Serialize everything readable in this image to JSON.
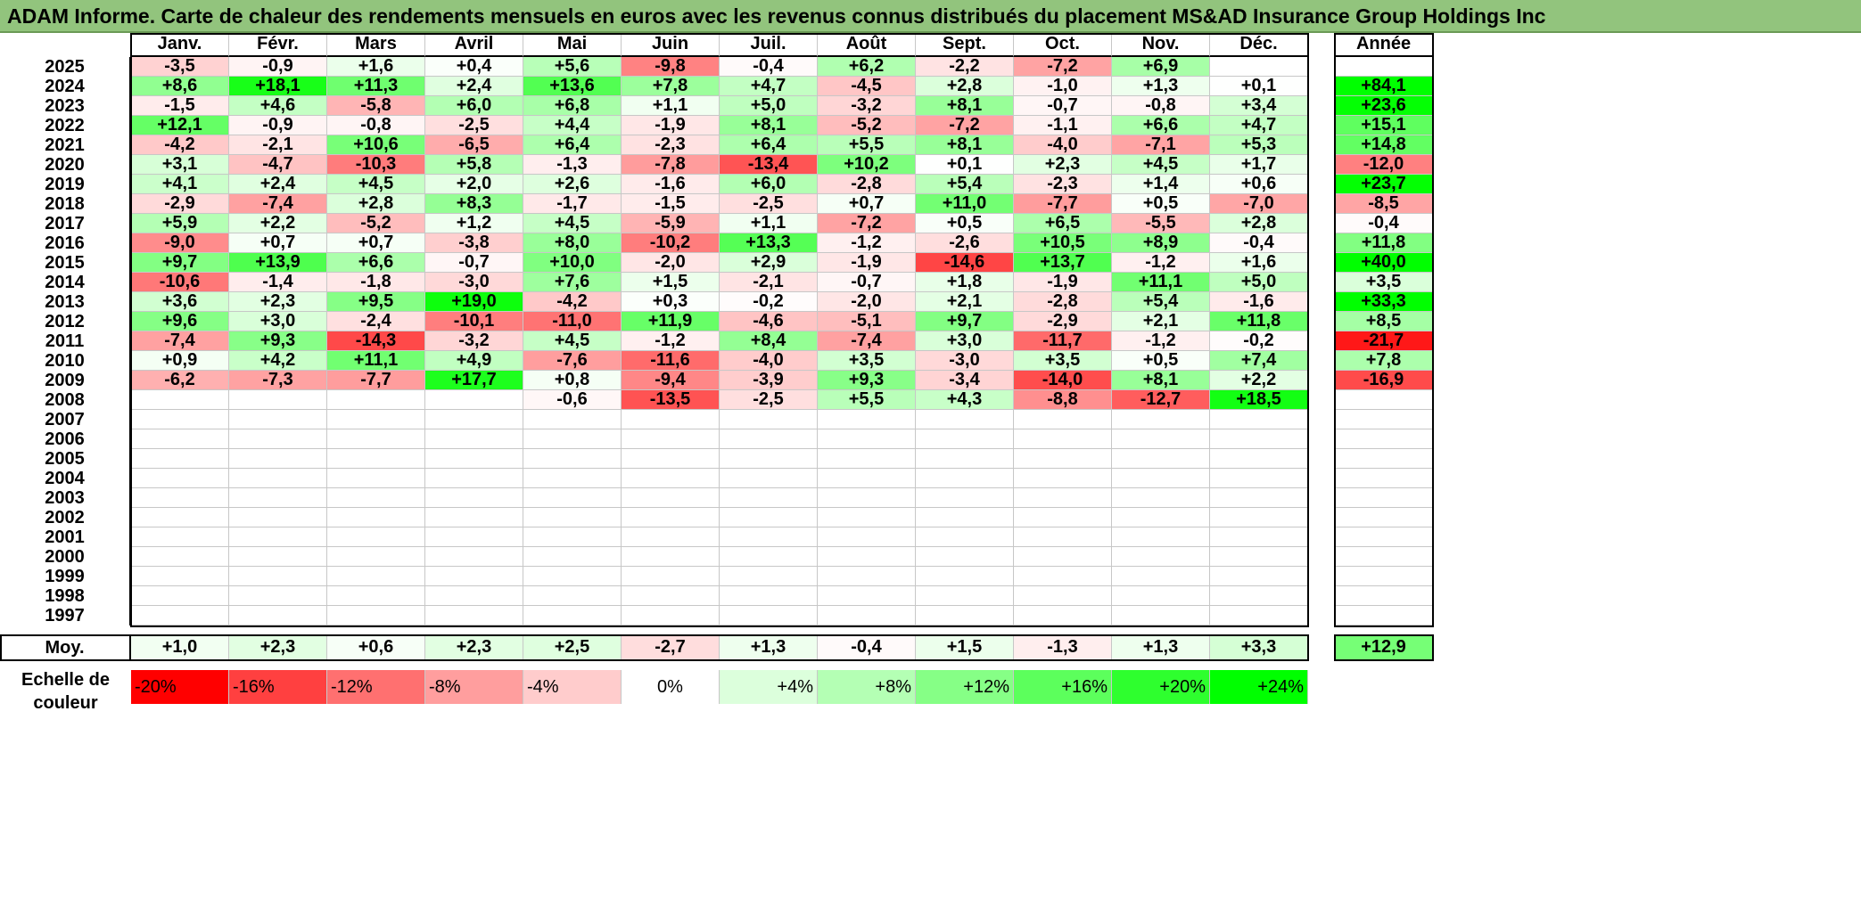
{
  "title": "ADAM Informe. Carte de chaleur des rendements mensuels en euros avec les revenus connus distribués du placement MS&AD Insurance Group Holdings Inc",
  "chart_data": {
    "type": "heatmap",
    "columns": [
      "Janv.",
      "Févr.",
      "Mars",
      "Avril",
      "Mai",
      "Juin",
      "Juil.",
      "Août",
      "Sept.",
      "Oct.",
      "Nov.",
      "Déc."
    ],
    "year_header": "Année",
    "rows": [
      {
        "year": "2025",
        "months": [
          "-3,5",
          "-0,9",
          "+1,6",
          "+0,4",
          "+5,6",
          "-9,8",
          "-0,4",
          "+6,2",
          "-2,2",
          "-7,2",
          "+6,9",
          ""
        ],
        "annual": ""
      },
      {
        "year": "2024",
        "months": [
          "+8,6",
          "+18,1",
          "+11,3",
          "+2,4",
          "+13,6",
          "+7,8",
          "+4,7",
          "-4,5",
          "+2,8",
          "-1,0",
          "+1,3",
          "+0,1"
        ],
        "annual": "+84,1"
      },
      {
        "year": "2023",
        "months": [
          "-1,5",
          "+4,6",
          "-5,8",
          "+6,0",
          "+6,8",
          "+1,1",
          "+5,0",
          "-3,2",
          "+8,1",
          "-0,7",
          "-0,8",
          "+3,4"
        ],
        "annual": "+23,6"
      },
      {
        "year": "2022",
        "months": [
          "+12,1",
          "-0,9",
          "-0,8",
          "-2,5",
          "+4,4",
          "-1,9",
          "+8,1",
          "-5,2",
          "-7,2",
          "-1,1",
          "+6,6",
          "+4,7"
        ],
        "annual": "+15,1"
      },
      {
        "year": "2021",
        "months": [
          "-4,2",
          "-2,1",
          "+10,6",
          "-6,5",
          "+6,4",
          "-2,3",
          "+6,4",
          "+5,5",
          "+8,1",
          "-4,0",
          "-7,1",
          "+5,3"
        ],
        "annual": "+14,8"
      },
      {
        "year": "2020",
        "months": [
          "+3,1",
          "-4,7",
          "-10,3",
          "+5,8",
          "-1,3",
          "-7,8",
          "-13,4",
          "+10,2",
          "+0,1",
          "+2,3",
          "+4,5",
          "+1,7"
        ],
        "annual": "-12,0"
      },
      {
        "year": "2019",
        "months": [
          "+4,1",
          "+2,4",
          "+4,5",
          "+2,0",
          "+2,6",
          "-1,6",
          "+6,0",
          "-2,8",
          "+5,4",
          "-2,3",
          "+1,4",
          "+0,6"
        ],
        "annual": "+23,7"
      },
      {
        "year": "2018",
        "months": [
          "-2,9",
          "-7,4",
          "+2,8",
          "+8,3",
          "-1,7",
          "-1,5",
          "-2,5",
          "+0,7",
          "+11,0",
          "-7,7",
          "+0,5",
          "-7,0"
        ],
        "annual": "-8,5"
      },
      {
        "year": "2017",
        "months": [
          "+5,9",
          "+2,2",
          "-5,2",
          "+1,2",
          "+4,5",
          "-5,9",
          "+1,1",
          "-7,2",
          "+0,5",
          "+6,5",
          "-5,5",
          "+2,8"
        ],
        "annual": "-0,4"
      },
      {
        "year": "2016",
        "months": [
          "-9,0",
          "+0,7",
          "+0,7",
          "-3,8",
          "+8,0",
          "-10,2",
          "+13,3",
          "-1,2",
          "-2,6",
          "+10,5",
          "+8,9",
          "-0,4"
        ],
        "annual": "+11,8"
      },
      {
        "year": "2015",
        "months": [
          "+9,7",
          "+13,9",
          "+6,6",
          "-0,7",
          "+10,0",
          "-2,0",
          "+2,9",
          "-1,9",
          "-14,6",
          "+13,7",
          "-1,2",
          "+1,6"
        ],
        "annual": "+40,0"
      },
      {
        "year": "2014",
        "months": [
          "-10,6",
          "-1,4",
          "-1,8",
          "-3,0",
          "+7,6",
          "+1,5",
          "-2,1",
          "-0,7",
          "+1,8",
          "-1,9",
          "+11,1",
          "+5,0"
        ],
        "annual": "+3,5"
      },
      {
        "year": "2013",
        "months": [
          "+3,6",
          "+2,3",
          "+9,5",
          "+19,0",
          "-4,2",
          "+0,3",
          "-0,2",
          "-2,0",
          "+2,1",
          "-2,8",
          "+5,4",
          "-1,6"
        ],
        "annual": "+33,3"
      },
      {
        "year": "2012",
        "months": [
          "+9,6",
          "+3,0",
          "-2,4",
          "-10,1",
          "-11,0",
          "+11,9",
          "-4,6",
          "-5,1",
          "+9,7",
          "-2,9",
          "+2,1",
          "+11,8"
        ],
        "annual": "+8,5"
      },
      {
        "year": "2011",
        "months": [
          "-7,4",
          "+9,3",
          "-14,3",
          "-3,2",
          "+4,5",
          "-1,2",
          "+8,4",
          "-7,4",
          "+3,0",
          "-11,7",
          "-1,2",
          "-0,2"
        ],
        "annual": "-21,7"
      },
      {
        "year": "2010",
        "months": [
          "+0,9",
          "+4,2",
          "+11,1",
          "+4,9",
          "-7,6",
          "-11,6",
          "-4,0",
          "+3,5",
          "-3,0",
          "+3,5",
          "+0,5",
          "+7,4"
        ],
        "annual": "+7,8"
      },
      {
        "year": "2009",
        "months": [
          "-6,2",
          "-7,3",
          "-7,7",
          "+17,7",
          "+0,8",
          "-9,4",
          "-3,9",
          "+9,3",
          "-3,4",
          "-14,0",
          "+8,1",
          "+2,2"
        ],
        "annual": "-16,9"
      },
      {
        "year": "2008",
        "months": [
          "",
          "",
          "",
          "",
          "-0,6",
          "-13,5",
          "-2,5",
          "+5,5",
          "+4,3",
          "-8,8",
          "-12,7",
          "+18,5"
        ],
        "annual": ""
      },
      {
        "year": "2007",
        "months": [
          "",
          "",
          "",
          "",
          "",
          "",
          "",
          "",
          "",
          "",
          "",
          ""
        ],
        "annual": ""
      },
      {
        "year": "2006",
        "months": [
          "",
          "",
          "",
          "",
          "",
          "",
          "",
          "",
          "",
          "",
          "",
          ""
        ],
        "annual": ""
      },
      {
        "year": "2005",
        "months": [
          "",
          "",
          "",
          "",
          "",
          "",
          "",
          "",
          "",
          "",
          "",
          ""
        ],
        "annual": ""
      },
      {
        "year": "2004",
        "months": [
          "",
          "",
          "",
          "",
          "",
          "",
          "",
          "",
          "",
          "",
          "",
          ""
        ],
        "annual": ""
      },
      {
        "year": "2003",
        "months": [
          "",
          "",
          "",
          "",
          "",
          "",
          "",
          "",
          "",
          "",
          "",
          ""
        ],
        "annual": ""
      },
      {
        "year": "2002",
        "months": [
          "",
          "",
          "",
          "",
          "",
          "",
          "",
          "",
          "",
          "",
          "",
          ""
        ],
        "annual": ""
      },
      {
        "year": "2001",
        "months": [
          "",
          "",
          "",
          "",
          "",
          "",
          "",
          "",
          "",
          "",
          "",
          ""
        ],
        "annual": ""
      },
      {
        "year": "2000",
        "months": [
          "",
          "",
          "",
          "",
          "",
          "",
          "",
          "",
          "",
          "",
          "",
          ""
        ],
        "annual": ""
      },
      {
        "year": "1999",
        "months": [
          "",
          "",
          "",
          "",
          "",
          "",
          "",
          "",
          "",
          "",
          "",
          ""
        ],
        "annual": ""
      },
      {
        "year": "1998",
        "months": [
          "",
          "",
          "",
          "",
          "",
          "",
          "",
          "",
          "",
          "",
          "",
          ""
        ],
        "annual": ""
      },
      {
        "year": "1997",
        "months": [
          "",
          "",
          "",
          "",
          "",
          "",
          "",
          "",
          "",
          "",
          "",
          ""
        ],
        "annual": ""
      }
    ],
    "average": {
      "label": "Moy.",
      "months": [
        "+1,0",
        "+2,3",
        "+0,6",
        "+2,3",
        "+2,5",
        "-2,7",
        "+1,3",
        "-0,4",
        "+1,5",
        "-1,3",
        "+1,3",
        "+3,3"
      ],
      "annual": "+12,9"
    },
    "scale": {
      "label": "Echelle de couleur",
      "steps": [
        "-20%",
        "-16%",
        "-12%",
        "-8%",
        "-4%",
        "0%",
        "+4%",
        "+8%",
        "+12%",
        "+16%",
        "+20%",
        "+24%"
      ],
      "colors": [
        "#ff0000",
        "#ff4040",
        "#ff7070",
        "#ff9e9e",
        "#ffcccc",
        "#ffffff",
        "#dcffdc",
        "#b4ffb4",
        "#86ff86",
        "#5cff5c",
        "#2eff2e",
        "#00ff00"
      ]
    },
    "colors": {
      "negative_max": "#ff0000",
      "neutral": "#ffffff",
      "positive_max": "#00ff00",
      "title_bar": "#92c47d"
    }
  }
}
